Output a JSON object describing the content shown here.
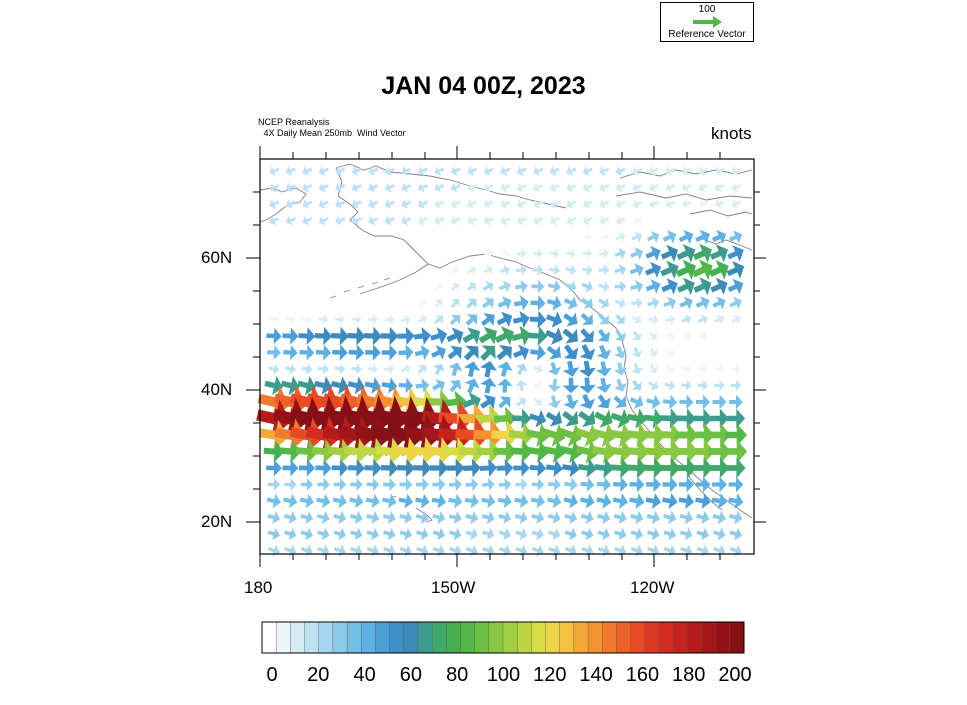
{
  "reference_vector": {
    "value": "100",
    "label": "Reference Vector",
    "color": "#52b848"
  },
  "title": "JAN 04 00Z, 2023",
  "source_line1": "NCEP Reanalysis",
  "source_line2": " 4X Daily Mean 250mb  Wind Vector",
  "units": "knots",
  "lat_labels": [
    "60N",
    "40N",
    "20N"
  ],
  "lon_labels": [
    "180",
    "150W",
    "120W"
  ],
  "colorbar": {
    "labels": [
      "0",
      "20",
      "40",
      "60",
      "80",
      "100",
      "120",
      "140",
      "160",
      "180",
      "200"
    ],
    "colors": [
      "#ffffff",
      "#edf6fb",
      "#d5ecf7",
      "#bde2f3",
      "#a5d7ef",
      "#8ccbec",
      "#74bfe8",
      "#5eb1e3",
      "#4ba0d7",
      "#3f8fcc",
      "#3d8cb7",
      "#3e9c8e",
      "#40a868",
      "#44b04f",
      "#52b848",
      "#6cc044",
      "#89c843",
      "#a3cf43",
      "#bed643",
      "#d8dd45",
      "#ecd546",
      "#f4c23f",
      "#f5aa38",
      "#f49232",
      "#f17a2c",
      "#ed6228",
      "#e84b24",
      "#df3a21",
      "#d22d20",
      "#c4231e",
      "#b41c1c",
      "#a4161a",
      "#941217",
      "#861015"
    ]
  }
}
